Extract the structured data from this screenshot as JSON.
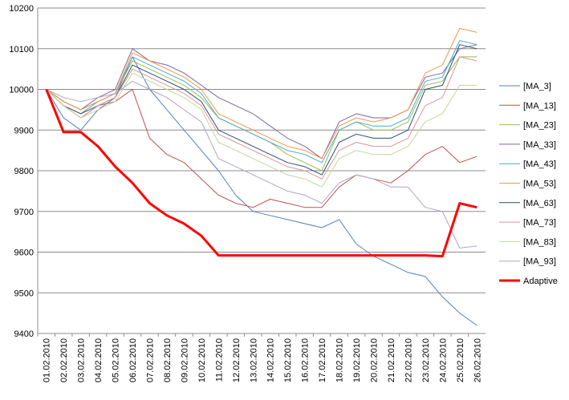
{
  "chart_data": {
    "type": "line",
    "title": "",
    "xlabel": "",
    "ylabel": "",
    "ylim": [
      9400,
      10200
    ],
    "yticks": [
      9400,
      9500,
      9600,
      9700,
      9800,
      9900,
      10000,
      10100,
      10200
    ],
    "grid": true,
    "legend_position": "right",
    "x_categories": [
      "01.02.2010",
      "02.02.2010",
      "03.02.2010",
      "04.02.2010",
      "05.02.2010",
      "06.02.2010",
      "07.02.2010",
      "08.02.2010",
      "09.02.2010",
      "10.02.2010",
      "11.02.2010",
      "12.02.2010",
      "13.02.2010",
      "14.02.2010",
      "15.02.2010",
      "16.02.2010",
      "17.02.2010",
      "18.02.2010",
      "19.02.2010",
      "20.02.2010",
      "21.02.2010",
      "22.02.2010",
      "23.02.2010",
      "24.02.2010",
      "25.02.2010",
      "26.02.2010"
    ],
    "series": [
      {
        "name": "[MA_3]",
        "color": "#4f81bd",
        "width": 1,
        "values": [
          10000,
          9930,
          9900,
          9950,
          9980,
          10080,
          10000,
          9950,
          9900,
          9850,
          9800,
          9740,
          9700,
          9690,
          9680,
          9670,
          9660,
          9680,
          9620,
          9590,
          9570,
          9550,
          9540,
          9490,
          9450,
          9420
        ]
      },
      {
        "name": "[MA_13]",
        "color": "#c0504d",
        "width": 1,
        "values": [
          10000,
          9960,
          9930,
          9960,
          9970,
          10000,
          9880,
          9840,
          9820,
          9780,
          9740,
          9720,
          9710,
          9730,
          9720,
          9710,
          9710,
          9760,
          9790,
          9780,
          9770,
          9800,
          9840,
          9860,
          9820,
          9835
        ]
      },
      {
        "name": "[MA_23]",
        "color": "#9bbb59",
        "width": 1,
        "values": [
          10000,
          9970,
          9950,
          9970,
          9990,
          10070,
          10050,
          10030,
          10010,
          9980,
          9930,
          9910,
          9890,
          9870,
          9840,
          9820,
          9800,
          9900,
          9920,
          9900,
          9900,
          9920,
          10010,
          10020,
          10080,
          10080
        ]
      },
      {
        "name": "[MA_33]",
        "color": "#8064a2",
        "width": 1,
        "values": [
          10000,
          9970,
          9950,
          9980,
          10000,
          10100,
          10070,
          10060,
          10040,
          10010,
          9980,
          9960,
          9940,
          9910,
          9880,
          9860,
          9830,
          9920,
          9940,
          9930,
          9930,
          9950,
          10030,
          10040,
          10100,
          10110
        ]
      },
      {
        "name": "[MA_43]",
        "color": "#4bacc6",
        "width": 1,
        "values": [
          10000,
          9960,
          9940,
          9970,
          9990,
          10080,
          10060,
          10040,
          10020,
          9990,
          9930,
          9910,
          9890,
          9870,
          9850,
          9840,
          9820,
          9900,
          9920,
          9910,
          9910,
          9930,
          10020,
          10030,
          10120,
          10110
        ]
      },
      {
        "name": "[MA_53]",
        "color": "#f79646",
        "width": 1,
        "values": [
          10000,
          9970,
          9950,
          9970,
          9990,
          10090,
          10070,
          10050,
          10030,
          10000,
          9940,
          9920,
          9900,
          9880,
          9860,
          9850,
          9830,
          9910,
          9930,
          9920,
          9930,
          9950,
          10040,
          10060,
          10150,
          10140
        ]
      },
      {
        "name": "[MA_63]",
        "color": "#2c4d75",
        "width": 1,
        "values": [
          10000,
          9960,
          9940,
          9960,
          9980,
          10060,
          10040,
          10020,
          10000,
          9970,
          9900,
          9880,
          9860,
          9840,
          9820,
          9810,
          9790,
          9870,
          9890,
          9880,
          9880,
          9900,
          10000,
          10010,
          10110,
          10100
        ]
      },
      {
        "name": "[MA_73]",
        "color": "#d99694",
        "width": 1,
        "values": [
          10000,
          9960,
          9930,
          9960,
          9980,
          10050,
          10030,
          10010,
          9990,
          9960,
          9890,
          9870,
          9850,
          9830,
          9810,
          9800,
          9780,
          9850,
          9870,
          9860,
          9860,
          9880,
          9960,
          9980,
          10080,
          10070
        ]
      },
      {
        "name": "[MA_83]",
        "color": "#c3d69b",
        "width": 1,
        "values": [
          10000,
          9960,
          9930,
          9950,
          9970,
          10040,
          10020,
          10000,
          9980,
          9950,
          9870,
          9850,
          9830,
          9810,
          9790,
          9780,
          9760,
          9830,
          9850,
          9840,
          9840,
          9860,
          9920,
          9940,
          10010,
          10010
        ]
      },
      {
        "name": "[MA_93]",
        "color": "#b3a2c7",
        "width": 1,
        "values": [
          10000,
          9980,
          9970,
          9980,
          9990,
          10020,
          10000,
          9980,
          9950,
          9920,
          9830,
          9810,
          9790,
          9770,
          9750,
          9740,
          9720,
          9770,
          9790,
          9780,
          9760,
          9760,
          9710,
          9700,
          9610,
          9615
        ]
      },
      {
        "name": "Adaptive",
        "color": "#ff0000",
        "width": 3,
        "values": [
          10000,
          9895,
          9895,
          9860,
          9810,
          9770,
          9720,
          9690,
          9670,
          9640,
          9592,
          9592,
          9592,
          9592,
          9592,
          9592,
          9592,
          9592,
          9592,
          9592,
          9592,
          9592,
          9592,
          9590,
          9720,
          9710
        ]
      }
    ]
  }
}
